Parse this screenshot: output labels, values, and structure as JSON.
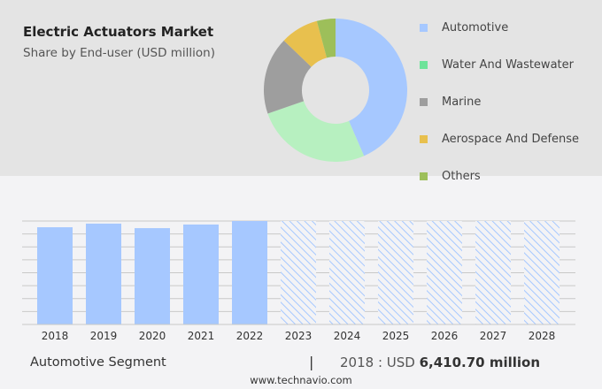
{
  "title": "Electric Actuators Market",
  "subtitle": "Share by End-user (USD million)",
  "chart_data": [
    {
      "type": "pie",
      "style": "donut",
      "series": [
        {
          "name": "Automotive",
          "value": 43.5,
          "color": "#a6c8ff"
        },
        {
          "name": "Water And Wastewater",
          "value": 26.2,
          "color": "#b7f0c0"
        },
        {
          "name": "Marine",
          "value": 17.5,
          "color": "#9e9e9e"
        },
        {
          "name": "Aerospace And Defense",
          "value": 8.6,
          "color": "#e8c04e"
        },
        {
          "name": "Others",
          "value": 4.2,
          "color": "#9dbf5a"
        }
      ],
      "legend_colors": [
        "#a6c8ff",
        "#6ee39a",
        "#9e9e9e",
        "#e8c04e",
        "#9dbf5a"
      ],
      "legend": "right"
    },
    {
      "type": "bar",
      "categories": [
        "2018",
        "2019",
        "2020",
        "2021",
        "2022",
        "2023",
        "2024",
        "2025",
        "2026",
        "2027",
        "2028"
      ],
      "values": [
        6410.7,
        6650,
        6350,
        6590,
        6820,
        null,
        null,
        null,
        null,
        null,
        null
      ],
      "forecast": [
        "2023",
        "2024",
        "2025",
        "2026",
        "2027",
        "2028"
      ],
      "color": "#a6c8ff",
      "grid": true,
      "ylim": [
        0,
        6820
      ]
    }
  ],
  "footer": {
    "segment": "Automotive Segment",
    "separator": "|",
    "year_label": "2018 : USD ",
    "value": "6,410.70 million",
    "site": "www.technavio.com"
  }
}
